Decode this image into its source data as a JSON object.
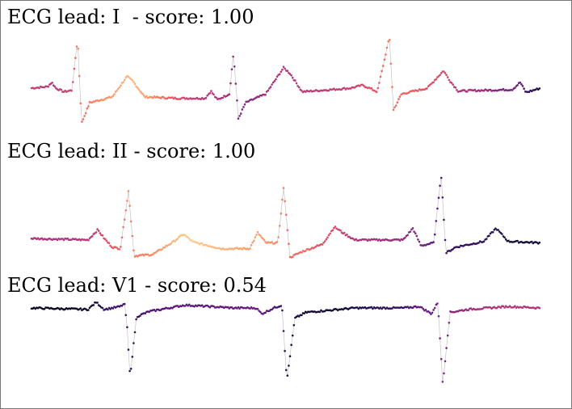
{
  "chart_data": [
    {
      "type": "scatter",
      "title": "ECG lead: I  - score: 1.00",
      "lead": "I",
      "score": 1.0,
      "x_range": [
        0,
        630
      ],
      "y_range": [
        -10,
        60
      ],
      "colormap": "magma",
      "shape": [
        {
          "t": 0,
          "v": 0,
          "c": 0.55
        },
        {
          "t": 20,
          "v": 2,
          "c": 0.52
        },
        {
          "t": 25,
          "v": 8,
          "c": 0.5
        },
        {
          "t": 30,
          "v": 0,
          "c": 0.52
        },
        {
          "t": 40,
          "v": -5,
          "c": 0.55
        },
        {
          "t": 50,
          "v": -3,
          "c": 0.6
        },
        {
          "t": 57,
          "v": 68,
          "c": 0.75
        },
        {
          "t": 62,
          "v": -48,
          "c": 0.7
        },
        {
          "t": 72,
          "v": -20,
          "c": 0.72
        },
        {
          "t": 100,
          "v": -12,
          "c": 0.8
        },
        {
          "t": 118,
          "v": 16,
          "c": 0.85
        },
        {
          "t": 125,
          "v": 10,
          "c": 0.85
        },
        {
          "t": 140,
          "v": -12,
          "c": 0.8
        },
        {
          "t": 180,
          "v": -14,
          "c": 0.62
        },
        {
          "t": 215,
          "v": -14,
          "c": 0.5
        },
        {
          "t": 222,
          "v": -4,
          "c": 0.52
        },
        {
          "t": 230,
          "v": -16,
          "c": 0.5
        },
        {
          "t": 245,
          "v": -8,
          "c": 0.45
        },
        {
          "t": 250,
          "v": 48,
          "c": 0.4
        },
        {
          "t": 256,
          "v": -42,
          "c": 0.38
        },
        {
          "t": 265,
          "v": -20,
          "c": 0.4
        },
        {
          "t": 290,
          "v": -8,
          "c": 0.45
        },
        {
          "t": 312,
          "v": 28,
          "c": 0.5
        },
        {
          "t": 320,
          "v": 20,
          "c": 0.5
        },
        {
          "t": 335,
          "v": -5,
          "c": 0.52
        },
        {
          "t": 395,
          "v": 0,
          "c": 0.55
        },
        {
          "t": 410,
          "v": 4,
          "c": 0.6
        },
        {
          "t": 418,
          "v": 0,
          "c": 0.62
        },
        {
          "t": 428,
          "v": -5,
          "c": 0.65
        },
        {
          "t": 443,
          "v": 70,
          "c": 0.72
        },
        {
          "t": 448,
          "v": -30,
          "c": 0.7
        },
        {
          "t": 458,
          "v": -8,
          "c": 0.68
        },
        {
          "t": 490,
          "v": 0,
          "c": 0.62
        },
        {
          "t": 510,
          "v": 24,
          "c": 0.6
        },
        {
          "t": 518,
          "v": 10,
          "c": 0.55
        },
        {
          "t": 528,
          "v": -4,
          "c": 0.5
        },
        {
          "t": 595,
          "v": -2,
          "c": 0.35
        },
        {
          "t": 605,
          "v": 8,
          "c": 0.32
        },
        {
          "t": 612,
          "v": -6,
          "c": 0.2
        },
        {
          "t": 630,
          "v": 0,
          "c": 0.12
        }
      ]
    },
    {
      "type": "scatter",
      "title": "ECG lead: II - score: 1.00",
      "lead": "II",
      "score": 1.0,
      "x_range": [
        0,
        630
      ],
      "y_range": [
        -10,
        60
      ],
      "colormap": "magma",
      "shape": [
        {
          "t": 0,
          "v": 0,
          "c": 0.48
        },
        {
          "t": 70,
          "v": -2,
          "c": 0.5
        },
        {
          "t": 82,
          "v": 12,
          "c": 0.55
        },
        {
          "t": 90,
          "v": 0,
          "c": 0.6
        },
        {
          "t": 100,
          "v": -12,
          "c": 0.65
        },
        {
          "t": 110,
          "v": -14,
          "c": 0.68
        },
        {
          "t": 120,
          "v": 65,
          "c": 0.75
        },
        {
          "t": 127,
          "v": -24,
          "c": 0.72
        },
        {
          "t": 150,
          "v": -22,
          "c": 0.75
        },
        {
          "t": 175,
          "v": -5,
          "c": 0.85
        },
        {
          "t": 188,
          "v": 6,
          "c": 0.88
        },
        {
          "t": 200,
          "v": -5,
          "c": 0.9
        },
        {
          "t": 235,
          "v": -14,
          "c": 0.85
        },
        {
          "t": 270,
          "v": -14,
          "c": 0.8
        },
        {
          "t": 280,
          "v": 8,
          "c": 0.8
        },
        {
          "t": 290,
          "v": -6,
          "c": 0.78
        },
        {
          "t": 305,
          "v": -6,
          "c": 0.75
        },
        {
          "t": 312,
          "v": 70,
          "c": 0.72
        },
        {
          "t": 320,
          "v": -26,
          "c": 0.68
        },
        {
          "t": 335,
          "v": -18,
          "c": 0.7
        },
        {
          "t": 360,
          "v": -8,
          "c": 0.62
        },
        {
          "t": 375,
          "v": 16,
          "c": 0.6
        },
        {
          "t": 385,
          "v": 8,
          "c": 0.55
        },
        {
          "t": 400,
          "v": -2,
          "c": 0.48
        },
        {
          "t": 460,
          "v": -2,
          "c": 0.42
        },
        {
          "t": 472,
          "v": 14,
          "c": 0.4
        },
        {
          "t": 482,
          "v": -10,
          "c": 0.35
        },
        {
          "t": 498,
          "v": -6,
          "c": 0.3
        },
        {
          "t": 507,
          "v": 88,
          "c": 0.25
        },
        {
          "t": 513,
          "v": -20,
          "c": 0.22
        },
        {
          "t": 525,
          "v": -12,
          "c": 0.2
        },
        {
          "t": 560,
          "v": -4,
          "c": 0.18
        },
        {
          "t": 575,
          "v": 14,
          "c": 0.15
        },
        {
          "t": 590,
          "v": -4,
          "c": 0.12
        },
        {
          "t": 630,
          "v": -6,
          "c": 0.1
        }
      ]
    },
    {
      "type": "scatter",
      "title": "ECG lead: V1 - score: 0.54",
      "lead": "V1",
      "score": 0.54,
      "x_range": [
        0,
        630
      ],
      "y_range": [
        -10,
        60
      ],
      "colormap": "magma",
      "shape": [
        {
          "t": 0,
          "v": 0,
          "c": 0.05
        },
        {
          "t": 70,
          "v": -2,
          "c": 0.08
        },
        {
          "t": 80,
          "v": 8,
          "c": 0.12
        },
        {
          "t": 90,
          "v": -2,
          "c": 0.18
        },
        {
          "t": 110,
          "v": 2,
          "c": 0.22
        },
        {
          "t": 115,
          "v": 6,
          "c": 0.22
        },
        {
          "t": 118,
          "v": -20,
          "c": 0.2
        },
        {
          "t": 122,
          "v": -95,
          "c": 0.15
        },
        {
          "t": 130,
          "v": -12,
          "c": 0.2
        },
        {
          "t": 145,
          "v": -5,
          "c": 0.25
        },
        {
          "t": 190,
          "v": 4,
          "c": 0.3
        },
        {
          "t": 250,
          "v": 0,
          "c": 0.3
        },
        {
          "t": 278,
          "v": 0,
          "c": 0.32
        },
        {
          "t": 285,
          "v": -8,
          "c": 0.3
        },
        {
          "t": 300,
          "v": 0,
          "c": 0.25
        },
        {
          "t": 310,
          "v": 4,
          "c": 0.2
        },
        {
          "t": 316,
          "v": -100,
          "c": 0.15
        },
        {
          "t": 326,
          "v": -14,
          "c": 0.12
        },
        {
          "t": 340,
          "v": -6,
          "c": 0.1
        },
        {
          "t": 400,
          "v": 0,
          "c": 0.12
        },
        {
          "t": 460,
          "v": 0,
          "c": 0.2
        },
        {
          "t": 480,
          "v": 2,
          "c": 0.3
        },
        {
          "t": 495,
          "v": -8,
          "c": 0.32
        },
        {
          "t": 503,
          "v": 8,
          "c": 0.35
        },
        {
          "t": 509,
          "v": -105,
          "c": 0.4
        },
        {
          "t": 518,
          "v": -6,
          "c": 0.38
        },
        {
          "t": 540,
          "v": -2,
          "c": 0.45
        },
        {
          "t": 590,
          "v": 2,
          "c": 0.5
        },
        {
          "t": 630,
          "v": 0,
          "c": 0.48
        }
      ]
    }
  ]
}
